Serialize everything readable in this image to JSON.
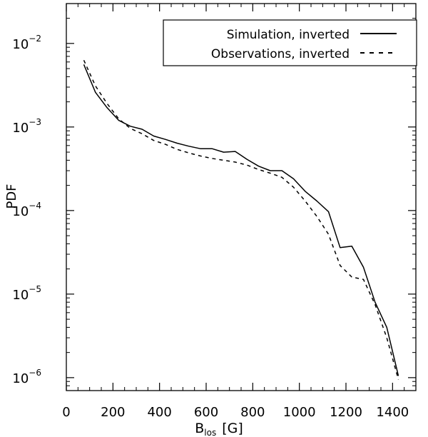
{
  "chart_data": {
    "type": "line",
    "xlabel": "B",
    "xlabel_sub": "los",
    "xlabel_unit": "[G]",
    "ylabel": "PDF",
    "xlim": [
      0,
      1500
    ],
    "ylim": [
      7e-07,
      0.03
    ],
    "yscale": "log",
    "x_ticks": [
      0,
      200,
      400,
      600,
      800,
      1000,
      1200,
      1400
    ],
    "x_tick_labels": [
      "0",
      "200",
      "400",
      "600",
      "800",
      "1000",
      "1200",
      "1400"
    ],
    "y_ticks": [
      {
        "value": 0.01,
        "base": "10",
        "exp": "−2"
      },
      {
        "value": 0.001,
        "base": "10",
        "exp": "−3"
      },
      {
        "value": 0.0001,
        "base": "10",
        "exp": "−4"
      },
      {
        "value": 1e-05,
        "base": "10",
        "exp": "−5"
      },
      {
        "value": 1e-06,
        "base": "10",
        "exp": "−6"
      }
    ],
    "legend_position": "top-right",
    "series": [
      {
        "name": "Simulation, inverted",
        "style": "solid",
        "color": "#000000",
        "x": [
          75,
          125,
          175,
          225,
          275,
          325,
          375,
          425,
          475,
          525,
          575,
          625,
          675,
          725,
          775,
          825,
          875,
          925,
          975,
          1025,
          1075,
          1125,
          1175,
          1225,
          1275,
          1325,
          1375,
          1425
        ],
        "y": [
          0.0056,
          0.0026,
          0.0017,
          0.0012,
          0.00102,
          0.00094,
          0.00078,
          0.00071,
          0.00064,
          0.00059,
          0.00055,
          0.00055,
          0.0005,
          0.00051,
          0.00041,
          0.00034,
          0.0003,
          0.0003,
          0.00024,
          0.00017,
          0.00013,
          9.7e-05,
          3.6e-05,
          3.75e-05,
          2.1e-05,
          8e-06,
          4e-06,
          1.05e-06
        ]
      },
      {
        "name": "Observations, inverted",
        "style": "dashed",
        "color": "#000000",
        "x": [
          75,
          125,
          175,
          225,
          275,
          325,
          375,
          425,
          475,
          525,
          575,
          625,
          675,
          725,
          775,
          825,
          875,
          925,
          975,
          1025,
          1075,
          1125,
          1175,
          1225,
          1275,
          1325,
          1375,
          1425
        ],
        "y": [
          0.0063,
          0.0031,
          0.0019,
          0.00125,
          0.00096,
          0.00083,
          0.00069,
          0.00062,
          0.00054,
          0.00049,
          0.00045,
          0.00042,
          0.0004,
          0.00038,
          0.00035,
          0.00031,
          0.00028,
          0.00025,
          0.00019,
          0.00013,
          8.5e-05,
          5.2e-05,
          2.2e-05,
          1.6e-05,
          1.5e-05,
          7.5e-06,
          3e-06,
          9.5e-07
        ]
      }
    ]
  }
}
